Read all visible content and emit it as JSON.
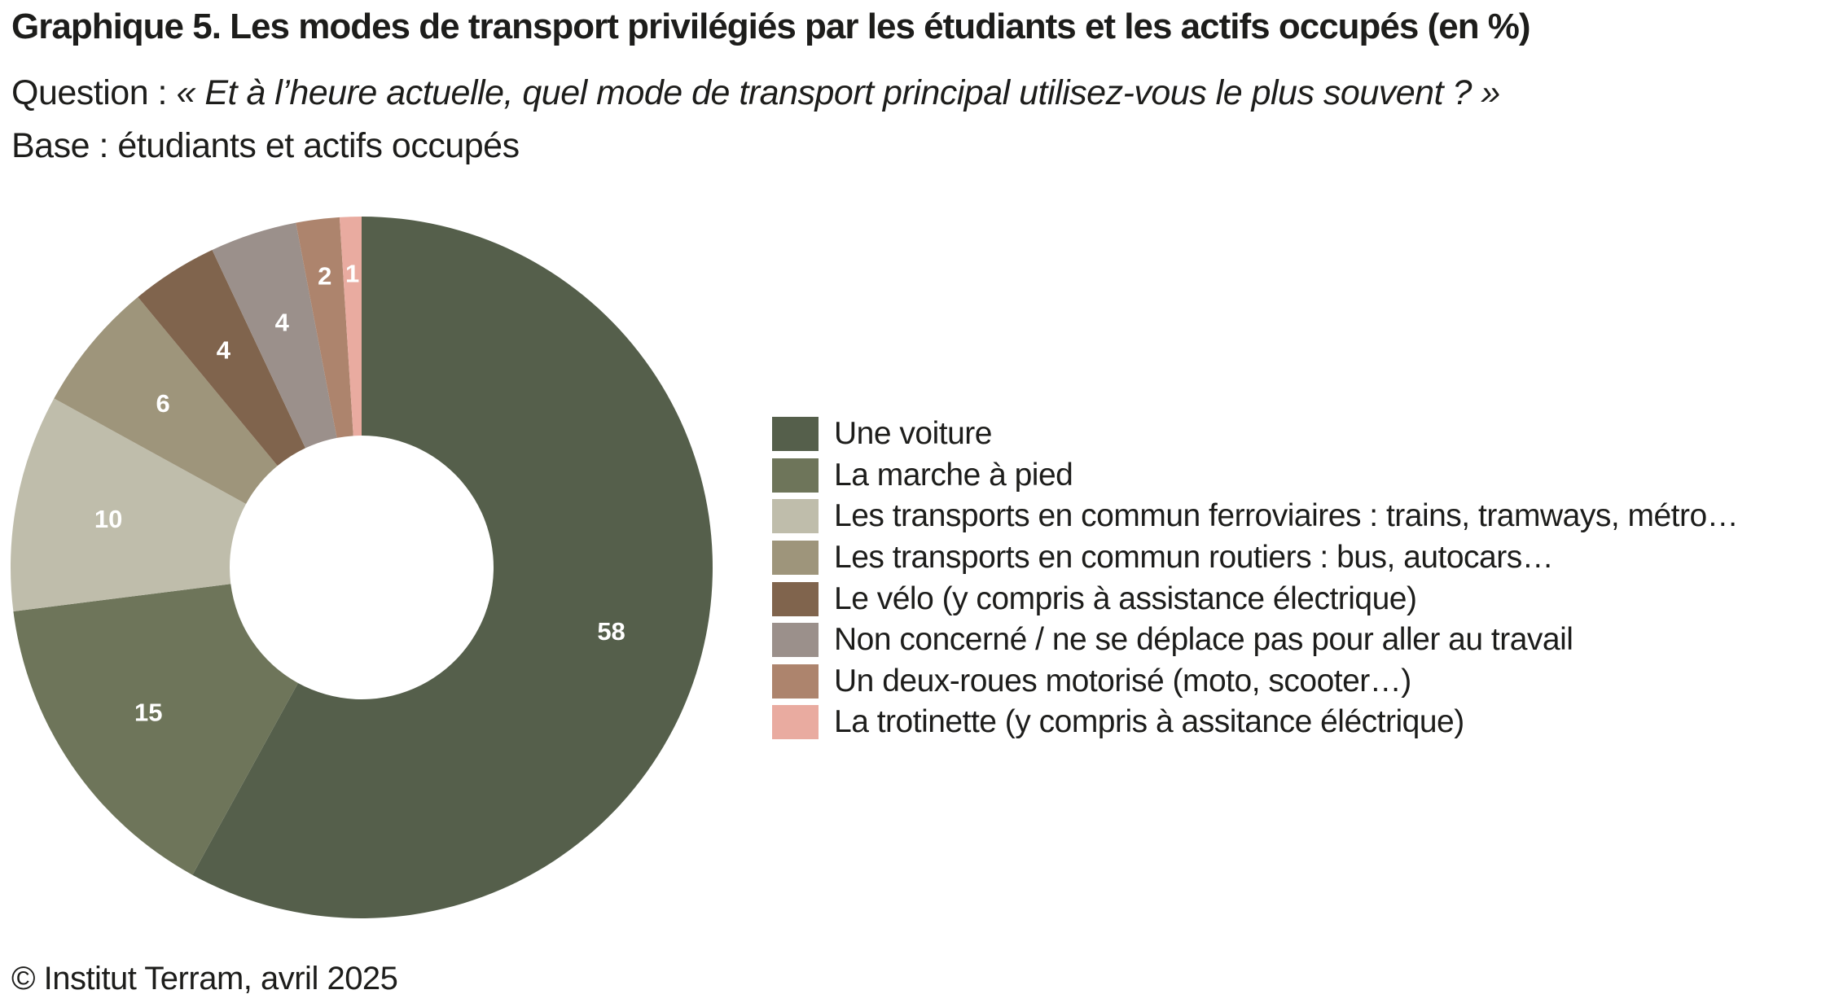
{
  "header": {
    "title": "Graphique 5. Les modes de transport privilégiés par les étudiants et les actifs occupés (en %)",
    "question_prefix": "Question : ",
    "question_text": "« Et à l’heure actuelle, quel mode de transport principal utilisez-vous le plus souvent ? »",
    "base": "Base : étudiants et actifs occupés"
  },
  "footer": "© Institut Terram, avril 2025",
  "chart_data": {
    "type": "pie",
    "donut": true,
    "title": "Graphique 5. Les modes de transport privilégiés par les étudiants et les actifs occupés (en %)",
    "unit": "%",
    "legend_position": "right",
    "categories": [
      "Une voiture",
      "La marche à pied",
      "Les transports en commun ferroviaires : trains, tramways, métro…",
      "Les transports en commun routiers : bus, autocars…",
      "Le vélo (y compris à assistance électrique)",
      "Non concerné / ne se déplace pas pour aller au travail",
      "Un deux-roues motorisé (moto, scooter…)",
      "La trotinette (y compris à assitance éléctrique)"
    ],
    "values": [
      58,
      15,
      10,
      6,
      4,
      4,
      2,
      1
    ],
    "colors": [
      "#555f4b",
      "#6e755a",
      "#bfbdab",
      "#9e957b",
      "#80644d",
      "#9b908b",
      "#ad846d",
      "#e9aba0"
    ]
  }
}
